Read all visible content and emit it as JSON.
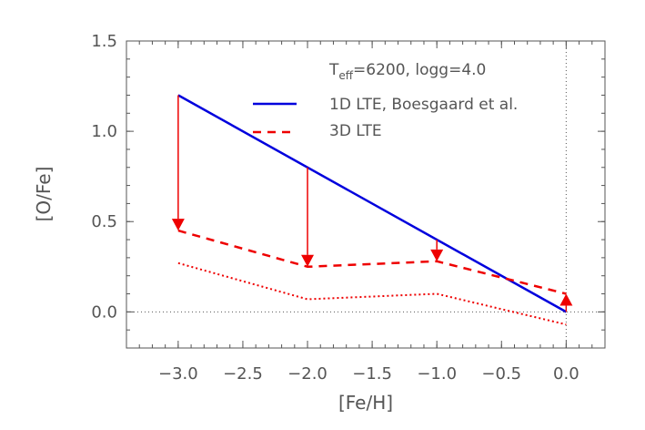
{
  "chart_data": {
    "type": "line",
    "xlabel": "[Fe/H]",
    "ylabel": "[O/Fe]",
    "xlim": [
      -3.4,
      0.3
    ],
    "ylim": [
      -0.2,
      1.5
    ],
    "xticks": [
      -3.0,
      -2.5,
      -2.0,
      -1.5,
      -1.0,
      -0.5,
      0.0
    ],
    "xtick_labels": [
      "−3.0",
      "−2.5",
      "−2.0",
      "−1.5",
      "−1.0",
      "−0.5",
      "0.0"
    ],
    "yticks": [
      0.0,
      0.5,
      1.0,
      1.5
    ],
    "ytick_labels": [
      "0.0",
      "0.5",
      "1.0",
      "1.5"
    ],
    "annotation": {
      "teff_symbol": "T",
      "teff_subscript": "eff",
      "rest": "=6200, logg=4.0"
    },
    "series": [
      {
        "name": "1D LTE, Boesgaard et al.",
        "color": "#0000dd",
        "style": "solid",
        "x": [
          -3.0,
          0.0
        ],
        "y": [
          1.2,
          0.0
        ]
      },
      {
        "name": "3D LTE",
        "color": "#ee0000",
        "style": "dashed",
        "x": [
          -3.0,
          -2.0,
          -1.0,
          0.0
        ],
        "y": [
          0.45,
          0.25,
          0.28,
          0.1
        ]
      },
      {
        "name": "",
        "color": "#ee0000",
        "style": "dotted",
        "x": [
          -3.0,
          -2.0,
          -1.0,
          0.0
        ],
        "y": [
          0.27,
          0.07,
          0.1,
          -0.07
        ]
      }
    ],
    "arrows": [
      {
        "x": -3.0,
        "from": 1.2,
        "to": 0.45
      },
      {
        "x": -2.0,
        "from": 0.8,
        "to": 0.25
      },
      {
        "x": -1.0,
        "from": 0.4,
        "to": 0.28
      },
      {
        "x": 0.0,
        "from": 0.0,
        "to": 0.1
      }
    ],
    "reference_lines": {
      "y_zero": true,
      "x_zero": true
    }
  }
}
